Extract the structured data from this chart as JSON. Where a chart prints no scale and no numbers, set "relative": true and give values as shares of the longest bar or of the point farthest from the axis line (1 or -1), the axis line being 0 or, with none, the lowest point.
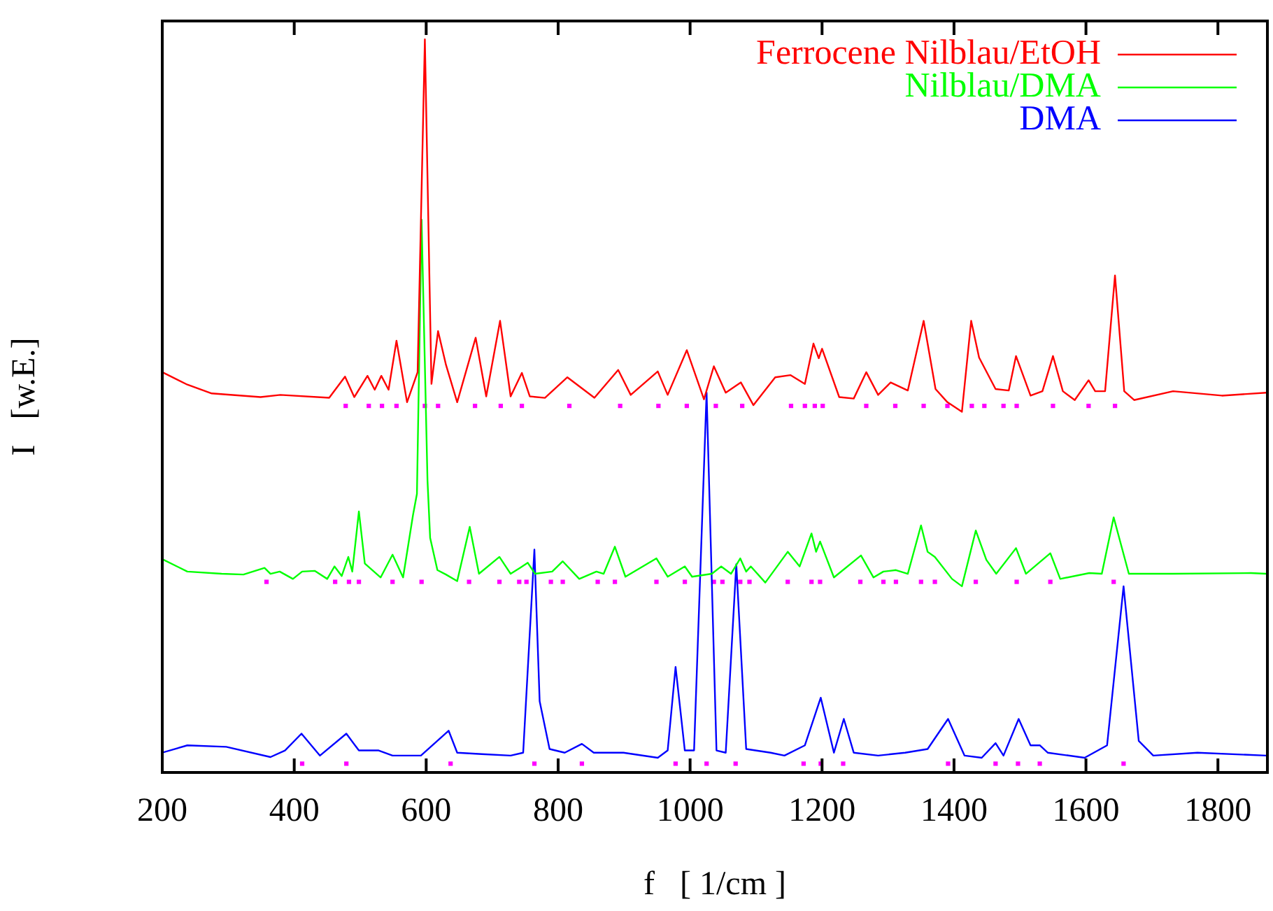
{
  "chart_data": {
    "type": "line",
    "relative": true,
    "xlabel": "f   [ 1/cm ]",
    "ylabel": "I   [w.E.]",
    "xlim": [
      200,
      1875
    ],
    "xticks": [
      200,
      400,
      600,
      800,
      1000,
      1200,
      1400,
      1600,
      1800
    ],
    "grid": false,
    "legend": "top right",
    "marker": "none",
    "line_style": "solid",
    "series": [
      {
        "name": "Ferrocene Nilblau/EtOH",
        "color": "#ff0000",
        "x": [
          200,
          238,
          275,
          349,
          379,
          453,
          477,
          491,
          511,
          522,
          532,
          543,
          555,
          571,
          587,
          598,
          608,
          618,
          630,
          647,
          675,
          691,
          712,
          728,
          745,
          757,
          780,
          814,
          855,
          891,
          910,
          951,
          966,
          995,
          1021,
          1036,
          1054,
          1077,
          1096,
          1129,
          1152,
          1174,
          1187,
          1195,
          1200,
          1226,
          1248,
          1267,
          1285,
          1304,
          1330,
          1354,
          1372,
          1390,
          1412,
          1426,
          1438,
          1463,
          1483,
          1494,
          1516,
          1534,
          1550,
          1565,
          1583,
          1604,
          1614,
          1629,
          1644,
          1658,
          1673,
          1732,
          1806,
          1873
        ],
        "values": [
          0.546,
          0.529,
          0.517,
          0.512,
          0.515,
          0.511,
          0.54,
          0.512,
          0.541,
          0.522,
          0.541,
          0.522,
          0.589,
          0.505,
          0.546,
          1.0,
          0.53,
          0.602,
          0.556,
          0.505,
          0.593,
          0.513,
          0.616,
          0.513,
          0.545,
          0.513,
          0.511,
          0.539,
          0.511,
          0.549,
          0.515,
          0.547,
          0.515,
          0.576,
          0.509,
          0.554,
          0.518,
          0.532,
          0.501,
          0.539,
          0.542,
          0.53,
          0.585,
          0.565,
          0.578,
          0.512,
          0.51,
          0.546,
          0.515,
          0.532,
          0.521,
          0.616,
          0.523,
          0.505,
          0.492,
          0.616,
          0.566,
          0.523,
          0.521,
          0.568,
          0.514,
          0.52,
          0.568,
          0.52,
          0.508,
          0.535,
          0.52,
          0.52,
          0.678,
          0.52,
          0.508,
          0.52,
          0.514,
          0.518
        ]
      },
      {
        "name": "Nilblau/DMA",
        "color": "#00ff00",
        "x": [
          200,
          238,
          290,
          323,
          355,
          364,
          378,
          398,
          412,
          431,
          450,
          461,
          472,
          482,
          488,
          498,
          507,
          531,
          549,
          565,
          580,
          586,
          593,
          602,
          606,
          617,
          630,
          647,
          666,
          680,
          711,
          728,
          742,
          754,
          765,
          791,
          807,
          832,
          858,
          869,
          886,
          902,
          949,
          966,
          992,
          1003,
          1033,
          1047,
          1062,
          1076,
          1085,
          1092,
          1114,
          1148,
          1166,
          1184,
          1191,
          1197,
          1218,
          1259,
          1278,
          1293,
          1312,
          1330,
          1350,
          1360,
          1371,
          1397,
          1412,
          1433,
          1449,
          1464,
          1494,
          1509,
          1546,
          1561,
          1605,
          1624,
          1642,
          1665,
          1732,
          1850,
          1873
        ],
        "values": [
          0.291,
          0.274,
          0.271,
          0.27,
          0.279,
          0.271,
          0.274,
          0.264,
          0.274,
          0.275,
          0.264,
          0.281,
          0.268,
          0.294,
          0.274,
          0.356,
          0.285,
          0.266,
          0.297,
          0.266,
          0.351,
          0.38,
          0.754,
          0.398,
          0.32,
          0.276,
          0.27,
          0.261,
          0.335,
          0.271,
          0.294,
          0.271,
          0.279,
          0.286,
          0.271,
          0.274,
          0.288,
          0.264,
          0.274,
          0.271,
          0.308,
          0.267,
          0.292,
          0.267,
          0.281,
          0.267,
          0.271,
          0.281,
          0.271,
          0.292,
          0.274,
          0.281,
          0.259,
          0.301,
          0.281,
          0.326,
          0.301,
          0.315,
          0.266,
          0.296,
          0.266,
          0.274,
          0.276,
          0.271,
          0.337,
          0.301,
          0.294,
          0.264,
          0.254,
          0.33,
          0.29,
          0.271,
          0.306,
          0.271,
          0.299,
          0.264,
          0.272,
          0.271,
          0.348,
          0.271,
          0.271,
          0.272,
          0.271
        ]
      },
      {
        "name": "DMA",
        "color": "#0000ff",
        "x": [
          200,
          238,
          297,
          364,
          386,
          411,
          439,
          479,
          498,
          528,
          549,
          592,
          634,
          647,
          684,
          728,
          747,
          764,
          772,
          787,
          810,
          836,
          854,
          899,
          951,
          966,
          978,
          992,
          1006,
          1025,
          1040,
          1054,
          1070,
          1085,
          1122,
          1143,
          1174,
          1198,
          1218,
          1233,
          1248,
          1285,
          1326,
          1360,
          1391,
          1416,
          1442,
          1463,
          1475,
          1498,
          1516,
          1530,
          1542,
          1598,
          1632,
          1657,
          1680,
          1702,
          1769,
          1873
        ],
        "values": [
          0.027,
          0.037,
          0.035,
          0.021,
          0.03,
          0.053,
          0.023,
          0.053,
          0.03,
          0.03,
          0.023,
          0.023,
          0.057,
          0.027,
          0.025,
          0.023,
          0.027,
          0.304,
          0.097,
          0.032,
          0.027,
          0.039,
          0.027,
          0.027,
          0.02,
          0.03,
          0.144,
          0.03,
          0.03,
          0.518,
          0.03,
          0.027,
          0.284,
          0.032,
          0.027,
          0.023,
          0.037,
          0.102,
          0.027,
          0.073,
          0.027,
          0.023,
          0.027,
          0.032,
          0.073,
          0.023,
          0.02,
          0.04,
          0.023,
          0.073,
          0.037,
          0.037,
          0.027,
          0.02,
          0.037,
          0.254,
          0.043,
          0.023,
          0.027,
          0.023
        ]
      },
      {
        "type": "scatter",
        "marker": "square",
        "color": "#ff00ff",
        "x": [
          478,
          513,
          533,
          555,
          598,
          618,
          674,
          713,
          745,
          817,
          894,
          952,
          995,
          1039,
          1079,
          1153,
          1174,
          1189,
          1201,
          1267,
          1311,
          1354,
          1390,
          1427,
          1446,
          1475,
          1495,
          1550,
          1604,
          1644
        ],
        "values": [
          0.5,
          0.5,
          0.5,
          0.5,
          0.5,
          0.5,
          0.5,
          0.5,
          0.5,
          0.5,
          0.5,
          0.5,
          0.5,
          0.5,
          0.5,
          0.5,
          0.5,
          0.5,
          0.5,
          0.5,
          0.5,
          0.5,
          0.5,
          0.5,
          0.5,
          0.5,
          0.5,
          0.5,
          0.5,
          0.5
        ]
      },
      {
        "type": "scatter",
        "marker": "square",
        "color": "#ff00ff",
        "x": [
          358,
          462,
          483,
          498,
          549,
          593,
          665,
          711,
          741,
          752,
          789,
          807,
          860,
          886,
          949,
          992,
          1036,
          1049,
          1076,
          1090,
          1148,
          1184,
          1197,
          1258,
          1293,
          1312,
          1350,
          1371,
          1433,
          1495,
          1546,
          1642
        ],
        "values": [
          0.26,
          0.26,
          0.26,
          0.26,
          0.26,
          0.26,
          0.26,
          0.26,
          0.26,
          0.26,
          0.26,
          0.26,
          0.26,
          0.26,
          0.26,
          0.26,
          0.26,
          0.26,
          0.26,
          0.26,
          0.26,
          0.26,
          0.26,
          0.26,
          0.26,
          0.26,
          0.26,
          0.26,
          0.26,
          0.26,
          0.26,
          0.26
        ]
      },
      {
        "type": "scatter",
        "marker": "square",
        "color": "#ff00ff",
        "x": [
          412,
          479,
          637,
          764,
          836,
          978,
          1025,
          1069,
          1172,
          1198,
          1232,
          1391,
          1463,
          1497,
          1530,
          1657
        ],
        "values": [
          0.012,
          0.012,
          0.012,
          0.012,
          0.012,
          0.012,
          0.012,
          0.012,
          0.012,
          0.012,
          0.012,
          0.012,
          0.012,
          0.012,
          0.012,
          0.012
        ]
      }
    ]
  }
}
